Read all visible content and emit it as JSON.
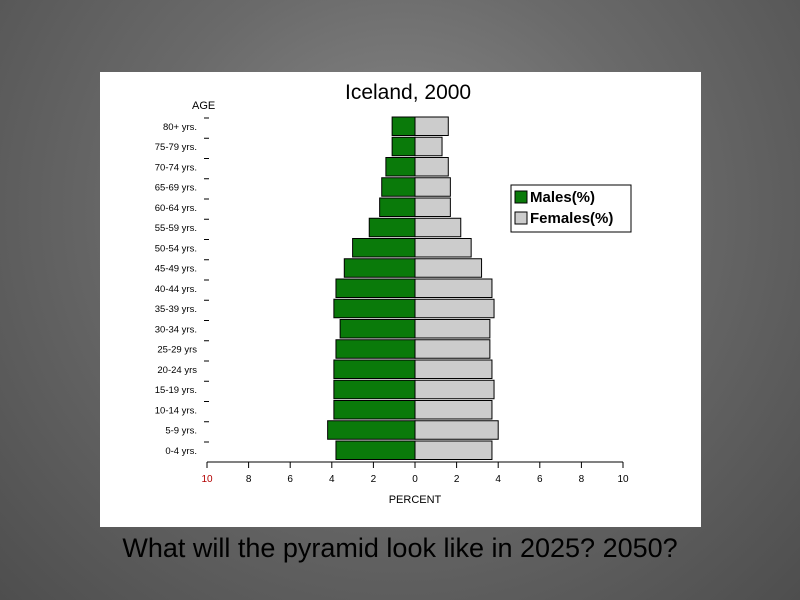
{
  "slide": {
    "caption": "What will the pyramid look like in 2025? 2050?"
  },
  "chart_data": {
    "type": "bar",
    "orientation": "horizontal",
    "layout": "population-pyramid",
    "title": "Iceland, 2000",
    "ylabel": "AGE",
    "xlabel": "PERCENT",
    "categories": [
      "0-4 yrs.",
      "5-9 yrs.",
      "10-14 yrs.",
      "15-19 yrs.",
      "20-24 yrs",
      "25-29 yrs",
      "30-34 yrs.",
      "35-39 yrs.",
      "40-44 yrs.",
      "45-49 yrs.",
      "50-54 yrs.",
      "55-59 yrs.",
      "60-64 yrs.",
      "65-69 yrs.",
      "70-74 yrs.",
      "75-79 yrs.",
      "80+ yrs."
    ],
    "series": [
      {
        "name": "Males(%)",
        "side": "left",
        "color": "#0a7a0a",
        "values": [
          3.8,
          4.2,
          3.9,
          3.9,
          3.9,
          3.8,
          3.6,
          3.9,
          3.8,
          3.4,
          3.0,
          2.2,
          1.7,
          1.6,
          1.4,
          1.1,
          1.1
        ]
      },
      {
        "name": "Females(%)",
        "side": "right",
        "color": "#cccccc",
        "values": [
          3.7,
          4.0,
          3.7,
          3.8,
          3.7,
          3.6,
          3.6,
          3.8,
          3.7,
          3.2,
          2.7,
          2.2,
          1.7,
          1.7,
          1.6,
          1.3,
          1.6
        ]
      }
    ],
    "xticks": [
      "10",
      "8",
      "6",
      "4",
      "2",
      "0",
      "2",
      "4",
      "6",
      "8",
      "10"
    ],
    "xlim": [
      -10,
      10
    ],
    "grid": false,
    "legend_position": "right"
  }
}
